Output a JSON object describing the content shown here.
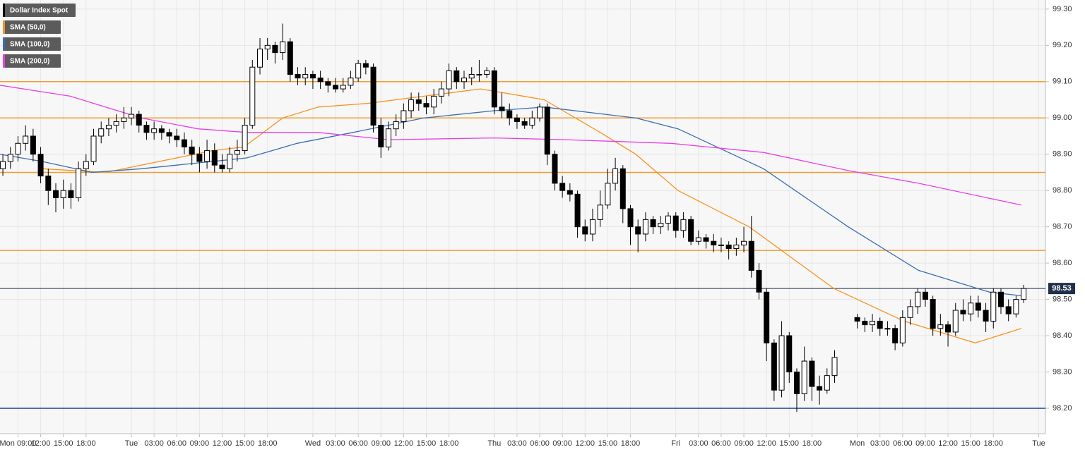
{
  "chart_data": {
    "type": "candlestick",
    "legend": "top-left",
    "grid": true,
    "xlim": [
      6.62,
      144.7
    ],
    "ylim": [
      98.13,
      99.325
    ],
    "yticks": [
      {
        "value": 98.2,
        "label": "98.20"
      },
      {
        "value": 98.3,
        "label": "98.30"
      },
      {
        "value": 98.4,
        "label": "98.40"
      },
      {
        "value": 98.5,
        "label": "98.50"
      },
      {
        "value": 98.6,
        "label": "98.60"
      },
      {
        "value": 98.7,
        "label": "98.70"
      },
      {
        "value": 98.8,
        "label": "98.80"
      },
      {
        "value": 98.9,
        "label": "98.90"
      },
      {
        "value": 99.0,
        "label": "99.00"
      },
      {
        "value": 99.1,
        "label": "99.10"
      },
      {
        "value": 99.2,
        "label": "99.20"
      },
      {
        "value": 99.3,
        "label": "99.30"
      }
    ],
    "xticks": [
      {
        "value": 9,
        "label": "Mon 09:00"
      },
      {
        "value": 12,
        "label": "12:00"
      },
      {
        "value": 15,
        "label": "15:00"
      },
      {
        "value": 18,
        "label": "18:00"
      },
      {
        "value": 24,
        "label": "Tue"
      },
      {
        "value": 27,
        "label": "03:00"
      },
      {
        "value": 30,
        "label": "06:00"
      },
      {
        "value": 33,
        "label": "09:00"
      },
      {
        "value": 36,
        "label": "12:00"
      },
      {
        "value": 39,
        "label": "15:00"
      },
      {
        "value": 42,
        "label": "18:00"
      },
      {
        "value": 48,
        "label": "Wed"
      },
      {
        "value": 51,
        "label": "03:00"
      },
      {
        "value": 54,
        "label": "06:00"
      },
      {
        "value": 57,
        "label": "09:00"
      },
      {
        "value": 60,
        "label": "12:00"
      },
      {
        "value": 63,
        "label": "15:00"
      },
      {
        "value": 66,
        "label": "18:00"
      },
      {
        "value": 72,
        "label": "Thu"
      },
      {
        "value": 75,
        "label": "03:00"
      },
      {
        "value": 78,
        "label": "06:00"
      },
      {
        "value": 81,
        "label": "09:00"
      },
      {
        "value": 84,
        "label": "12:00"
      },
      {
        "value": 87,
        "label": "15:00"
      },
      {
        "value": 90,
        "label": "18:00"
      },
      {
        "value": 96,
        "label": "Fri"
      },
      {
        "value": 99,
        "label": "03:00"
      },
      {
        "value": 102,
        "label": "06:00"
      },
      {
        "value": 105,
        "label": "09:00"
      },
      {
        "value": 108,
        "label": "12:00"
      },
      {
        "value": 111,
        "label": "15:00"
      },
      {
        "value": 114,
        "label": "18:00"
      },
      {
        "value": 120,
        "label": "Mon"
      },
      {
        "value": 123,
        "label": "03:00"
      },
      {
        "value": 126,
        "label": "06:00"
      },
      {
        "value": 129,
        "label": "09:00"
      },
      {
        "value": 132,
        "label": "12:00"
      },
      {
        "value": 135,
        "label": "15:00"
      },
      {
        "value": 138,
        "label": "18:00"
      },
      {
        "value": 144,
        "label": "Tue"
      }
    ],
    "last_price": 98.53,
    "last_price_color": "#1f2f4a",
    "levels": [
      {
        "value": 99.1,
        "color": "#f39c34"
      },
      {
        "value": 99.0,
        "color": "#f39c34"
      },
      {
        "value": 98.85,
        "color": "#f39c34"
      },
      {
        "value": 98.635,
        "color": "#f39c34"
      },
      {
        "value": 98.2,
        "color": "#1d3e9c"
      }
    ],
    "series": [
      {
        "name": "Dollar Index Spot",
        "type": "candlestick",
        "color": "#000000",
        "x": [
          7,
          8,
          9,
          10,
          11,
          12,
          13,
          14,
          15,
          16,
          17,
          18,
          19,
          20,
          21,
          22,
          23,
          24,
          25,
          26,
          27,
          28,
          29,
          30,
          31,
          32,
          33,
          34,
          35,
          36,
          37,
          38,
          39,
          40,
          41,
          42,
          43,
          44,
          45,
          46,
          47,
          48,
          49,
          50,
          51,
          52,
          53,
          54,
          55,
          56,
          57,
          58,
          59,
          60,
          61,
          62,
          63,
          64,
          65,
          66,
          67,
          68,
          69,
          70,
          71,
          72,
          73,
          74,
          75,
          76,
          77,
          78,
          79,
          80,
          81,
          82,
          83,
          84,
          85,
          86,
          87,
          88,
          89,
          90,
          91,
          92,
          93,
          94,
          95,
          96,
          97,
          98,
          99,
          100,
          101,
          102,
          103,
          104,
          105,
          106,
          107,
          108,
          109,
          110,
          111,
          112,
          113,
          114,
          115,
          116,
          117,
          120,
          121,
          122,
          123,
          124,
          125,
          126,
          127,
          128,
          129,
          130,
          131,
          132,
          133,
          134,
          135,
          136,
          137,
          138,
          139,
          140,
          141,
          142
        ],
        "open": [
          98.86,
          98.88,
          98.9,
          98.93,
          98.95,
          98.9,
          98.84,
          98.8,
          98.78,
          98.8,
          98.78,
          98.86,
          98.88,
          98.95,
          98.97,
          98.98,
          98.99,
          99.0,
          99.01,
          98.98,
          98.96,
          98.97,
          98.96,
          98.95,
          98.94,
          98.92,
          98.9,
          98.88,
          98.91,
          98.87,
          98.86,
          98.9,
          98.91,
          98.98,
          99.14,
          99.19,
          99.2,
          99.18,
          99.21,
          99.12,
          99.11,
          99.12,
          99.11,
          99.1,
          99.09,
          99.08,
          99.09,
          99.11,
          99.15,
          99.14,
          98.98,
          98.92,
          98.97,
          98.99,
          99.02,
          99.05,
          99.04,
          99.03,
          99.06,
          99.08,
          99.13,
          99.1,
          99.11,
          99.12,
          99.12,
          99.13,
          99.03,
          99.02,
          99.0,
          98.99,
          98.98,
          99.0,
          99.03,
          98.9,
          98.82,
          98.8,
          98.79,
          98.7,
          98.68,
          98.72,
          98.76,
          98.82,
          98.86,
          98.75,
          98.7,
          98.68,
          98.72,
          98.7,
          98.71,
          98.73,
          98.69,
          98.72,
          98.66,
          98.67,
          98.66,
          98.65,
          98.65,
          98.64,
          98.65,
          98.66,
          98.58,
          98.52,
          98.38,
          98.25,
          98.4,
          98.3,
          98.24,
          98.33,
          98.26,
          98.25,
          98.29,
          98.45,
          98.44,
          98.43,
          98.44,
          98.42,
          98.42,
          98.38,
          98.45,
          98.48,
          98.52,
          98.5,
          98.42,
          98.43,
          98.41,
          98.47,
          98.46,
          98.49,
          98.47,
          98.44,
          98.52,
          98.48,
          98.46,
          98.5
        ],
        "high": [
          98.9,
          98.92,
          98.95,
          98.98,
          98.97,
          98.92,
          98.86,
          98.82,
          98.83,
          98.82,
          98.88,
          98.9,
          98.97,
          98.99,
          99.0,
          99.01,
          99.03,
          99.03,
          99.02,
          98.99,
          98.99,
          98.98,
          98.97,
          98.97,
          98.96,
          98.94,
          98.92,
          98.94,
          98.93,
          98.9,
          98.92,
          98.94,
          99.0,
          99.16,
          99.22,
          99.22,
          99.21,
          99.26,
          99.22,
          99.14,
          99.14,
          99.13,
          99.13,
          99.11,
          99.11,
          99.11,
          99.13,
          99.16,
          99.16,
          99.15,
          99.0,
          98.99,
          99.01,
          99.04,
          99.07,
          99.07,
          99.06,
          99.08,
          99.1,
          99.15,
          99.14,
          99.13,
          99.14,
          99.16,
          99.14,
          99.14,
          99.07,
          99.04,
          99.01,
          99.0,
          99.02,
          99.04,
          99.04,
          98.91,
          98.84,
          98.82,
          98.8,
          98.72,
          98.75,
          98.8,
          98.86,
          98.89,
          98.87,
          98.76,
          98.72,
          98.74,
          98.73,
          98.73,
          98.74,
          98.74,
          98.74,
          98.73,
          98.69,
          98.68,
          98.68,
          98.67,
          98.66,
          98.67,
          98.7,
          98.73,
          98.6,
          98.53,
          98.39,
          98.44,
          98.41,
          98.31,
          98.37,
          98.34,
          98.29,
          98.31,
          98.36,
          98.46,
          98.45,
          98.46,
          98.45,
          98.44,
          98.43,
          98.47,
          98.5,
          98.53,
          98.53,
          98.51,
          98.46,
          98.44,
          98.49,
          98.5,
          98.51,
          98.51,
          98.49,
          98.53,
          98.53,
          98.5,
          98.51,
          98.54
        ],
        "low": [
          98.84,
          98.86,
          98.88,
          98.91,
          98.88,
          98.82,
          98.76,
          98.74,
          98.75,
          98.75,
          98.77,
          98.84,
          98.87,
          98.93,
          98.95,
          98.96,
          98.97,
          98.98,
          98.96,
          98.94,
          98.94,
          98.94,
          98.93,
          98.92,
          98.9,
          98.87,
          98.85,
          98.86,
          98.85,
          98.85,
          98.85,
          98.88,
          98.9,
          98.97,
          99.12,
          99.16,
          99.15,
          99.16,
          99.1,
          99.09,
          99.09,
          99.08,
          99.08,
          99.07,
          99.07,
          99.07,
          99.08,
          99.1,
          99.12,
          98.96,
          98.89,
          98.91,
          98.95,
          98.97,
          99.0,
          99.02,
          99.01,
          99.01,
          99.04,
          99.06,
          99.08,
          99.08,
          99.09,
          99.1,
          99.11,
          99.01,
          99.0,
          98.98,
          98.97,
          98.97,
          98.97,
          98.99,
          98.87,
          98.8,
          98.78,
          98.77,
          98.67,
          98.66,
          98.66,
          98.7,
          98.75,
          98.8,
          98.71,
          98.65,
          98.63,
          98.66,
          98.68,
          98.68,
          98.69,
          98.67,
          98.67,
          98.65,
          98.65,
          98.64,
          98.63,
          98.63,
          98.61,
          98.62,
          98.63,
          98.56,
          98.5,
          98.33,
          98.22,
          98.23,
          98.27,
          98.19,
          98.22,
          98.22,
          98.21,
          98.24,
          98.27,
          98.42,
          98.41,
          98.41,
          98.4,
          98.4,
          98.36,
          98.37,
          98.43,
          98.46,
          98.48,
          98.4,
          98.4,
          98.37,
          98.4,
          98.44,
          98.44,
          98.45,
          98.41,
          98.42,
          98.46,
          98.44,
          98.45,
          98.49
        ],
        "close": [
          98.88,
          98.9,
          98.93,
          98.95,
          98.9,
          98.84,
          98.8,
          98.78,
          98.8,
          98.78,
          98.86,
          98.88,
          98.95,
          98.97,
          98.98,
          98.99,
          99.0,
          99.01,
          98.98,
          98.96,
          98.97,
          98.96,
          98.95,
          98.94,
          98.92,
          98.9,
          98.88,
          98.91,
          98.87,
          98.86,
          98.9,
          98.91,
          98.98,
          99.14,
          99.19,
          99.2,
          99.18,
          99.21,
          99.12,
          99.11,
          99.12,
          99.11,
          99.1,
          99.09,
          99.08,
          99.09,
          99.11,
          99.15,
          99.14,
          98.98,
          98.92,
          98.97,
          98.99,
          99.02,
          99.05,
          99.04,
          99.03,
          99.06,
          99.08,
          99.13,
          99.1,
          99.11,
          99.12,
          99.12,
          99.13,
          99.03,
          99.02,
          99.0,
          98.99,
          98.98,
          99.0,
          99.03,
          98.9,
          98.82,
          98.8,
          98.79,
          98.7,
          98.68,
          98.72,
          98.76,
          98.82,
          98.86,
          98.75,
          98.7,
          98.68,
          98.72,
          98.7,
          98.71,
          98.73,
          98.69,
          98.72,
          98.66,
          98.67,
          98.66,
          98.65,
          98.65,
          98.64,
          98.65,
          98.66,
          98.58,
          98.52,
          98.38,
          98.25,
          98.4,
          98.3,
          98.24,
          98.33,
          98.26,
          98.25,
          98.29,
          98.34,
          98.44,
          98.43,
          98.44,
          98.42,
          98.42,
          98.38,
          98.45,
          98.48,
          98.52,
          98.5,
          98.42,
          98.43,
          98.41,
          98.47,
          98.46,
          98.49,
          98.47,
          98.44,
          98.52,
          98.48,
          98.46,
          98.5,
          98.53
        ]
      },
      {
        "name": "SMA (50,0)",
        "type": "line",
        "color": "#f7931e",
        "x": [
          12.2,
          20.6,
          34.7,
          38.9,
          44,
          48.7,
          55.2,
          62.7,
          70.2,
          78.6,
          86,
          90.7,
          96.3,
          105.7,
          116.9,
          126.2,
          135.6,
          141.7
        ],
        "values": [
          98.86,
          98.85,
          98.91,
          98.92,
          99.0,
          99.03,
          99.04,
          99.06,
          99.08,
          99.05,
          98.96,
          98.9,
          98.8,
          98.7,
          98.53,
          98.44,
          98.38,
          98.42
        ]
      },
      {
        "name": "SMA (100,0)",
        "type": "line",
        "color": "#3a6db3",
        "x": [
          6.6,
          12.2,
          18.8,
          25.3,
          34.7,
          39.3,
          45.9,
          53.3,
          62.7,
          72,
          78.6,
          90.7,
          96.3,
          107.6,
          118.8,
          128.1,
          137.5,
          141.7
        ],
        "values": [
          98.9,
          98.88,
          98.85,
          98.86,
          98.88,
          98.89,
          98.93,
          98.96,
          99.0,
          99.02,
          99.03,
          99.0,
          98.97,
          98.86,
          98.7,
          98.58,
          98.52,
          98.51
        ]
      },
      {
        "name": "SMA (200,0)",
        "type": "line",
        "color": "#e83ee8",
        "x": [
          6.6,
          15.9,
          25.3,
          32.8,
          39.3,
          48.7,
          58,
          72,
          81.4,
          95.4,
          107.6,
          118.8,
          128.1,
          141.7
        ],
        "values": [
          99.09,
          99.06,
          99.0,
          98.97,
          98.96,
          98.96,
          98.94,
          98.945,
          98.94,
          98.93,
          98.905,
          98.855,
          98.82,
          98.76
        ]
      }
    ]
  }
}
